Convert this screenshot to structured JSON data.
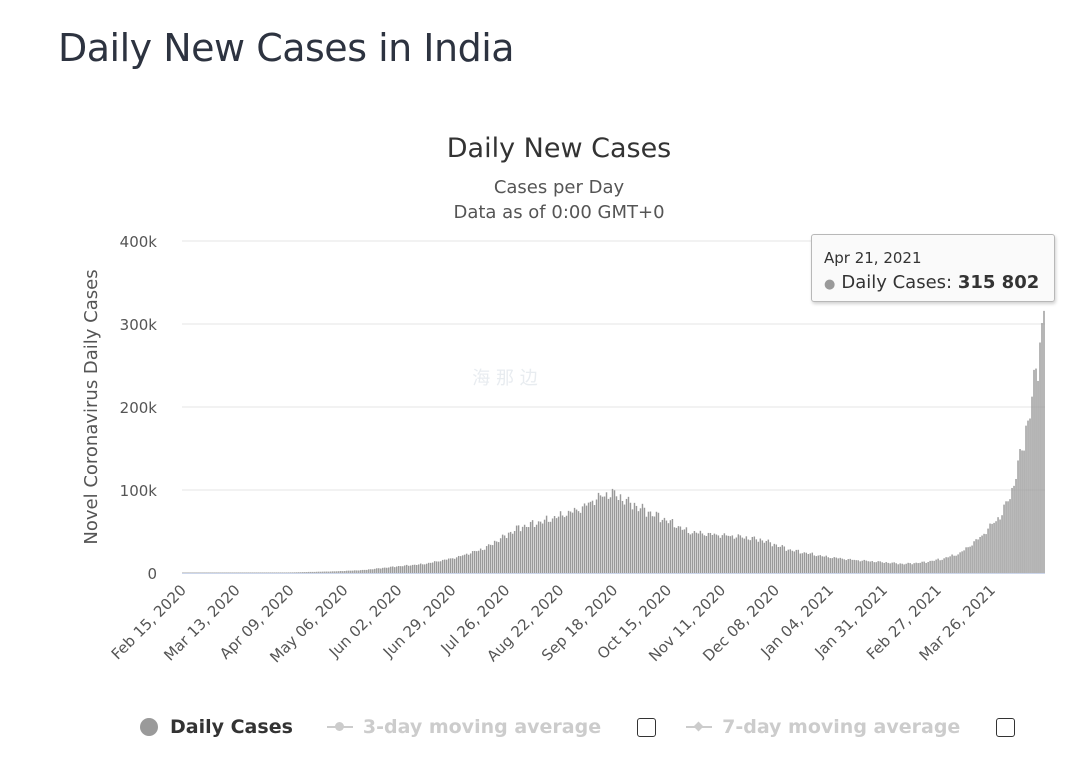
{
  "page": {
    "heading": "Daily New Cases in India"
  },
  "chart_data": {
    "type": "bar",
    "title": "Daily New Cases",
    "subtitle_lines": [
      "Cases per Day",
      "Data as of 0:00 GMT+0"
    ],
    "xlabel": "",
    "ylabel": "Novel Coronavirus Daily Cases",
    "ylim": [
      0,
      400000
    ],
    "yticks": [
      {
        "value": 0,
        "label": "0"
      },
      {
        "value": 100000,
        "label": "100k"
      },
      {
        "value": 200000,
        "label": "200k"
      },
      {
        "value": 300000,
        "label": "300k"
      },
      {
        "value": 400000,
        "label": "400k"
      }
    ],
    "x_start": "Feb 15, 2020",
    "x_end": "Apr 21, 2021",
    "x_tick_labels": [
      "Feb 15, 2020",
      "Mar 13, 2020",
      "Apr 09, 2020",
      "May 06, 2020",
      "Jun 02, 2020",
      "Jun 29, 2020",
      "Jul 26, 2020",
      "Aug 22, 2020",
      "Sep 18, 2020",
      "Oct 15, 2020",
      "Nov 11, 2020",
      "Dec 08, 2020",
      "Jan 04, 2021",
      "Jan 31, 2021",
      "Feb 27, 2021",
      "Mar 26, 2021"
    ],
    "series": [
      {
        "name": "Daily Cases",
        "color": "#999999",
        "values_by_day_knots": [
          [
            "Feb 15, 2020",
            0
          ],
          [
            "Mar 15, 2020",
            100
          ],
          [
            "Apr 10, 2020",
            800
          ],
          [
            "May 01, 2020",
            2000
          ],
          [
            "May 15, 2020",
            3500
          ],
          [
            "Jun 01, 2020",
            8000
          ],
          [
            "Jun 15, 2020",
            11000
          ],
          [
            "Jul 01, 2020",
            19000
          ],
          [
            "Jul 15, 2020",
            30000
          ],
          [
            "Aug 01, 2020",
            55000
          ],
          [
            "Aug 15, 2020",
            64000
          ],
          [
            "Sep 01, 2020",
            78000
          ],
          [
            "Sep 10, 2020",
            92000
          ],
          [
            "Sep 17, 2020",
            97000
          ],
          [
            "Sep 25, 2020",
            86000
          ],
          [
            "Oct 05, 2020",
            74000
          ],
          [
            "Oct 15, 2020",
            63000
          ],
          [
            "Oct 25, 2020",
            50000
          ],
          [
            "Nov 05, 2020",
            47000
          ],
          [
            "Nov 20, 2020",
            44000
          ],
          [
            "Dec 01, 2020",
            40000
          ],
          [
            "Dec 15, 2020",
            28000
          ],
          [
            "Jan 01, 2021",
            20000
          ],
          [
            "Jan 15, 2021",
            16000
          ],
          [
            "Jan 31, 2021",
            13000
          ],
          [
            "Feb 10, 2021",
            11000
          ],
          [
            "Feb 20, 2021",
            13000
          ],
          [
            "Mar 01, 2021",
            17000
          ],
          [
            "Mar 10, 2021",
            24000
          ],
          [
            "Mar 20, 2021",
            43000
          ],
          [
            "Mar 31, 2021",
            72000
          ],
          [
            "Apr 05, 2021",
            100000
          ],
          [
            "Apr 10, 2021",
            150000
          ],
          [
            "Apr 15, 2021",
            210000
          ],
          [
            "Apr 18, 2021",
            260000
          ],
          [
            "Apr 21, 2021",
            315802
          ]
        ]
      }
    ],
    "grid": true,
    "legend_position": "bottom",
    "legend": [
      {
        "label": "Daily Cases",
        "active": true
      },
      {
        "label": "3-day moving average",
        "active": false
      },
      {
        "label": "7-day moving average",
        "active": false
      }
    ],
    "tooltip": {
      "date": "Apr 21, 2021",
      "label": "Daily Cases:",
      "value": "315 802"
    }
  }
}
